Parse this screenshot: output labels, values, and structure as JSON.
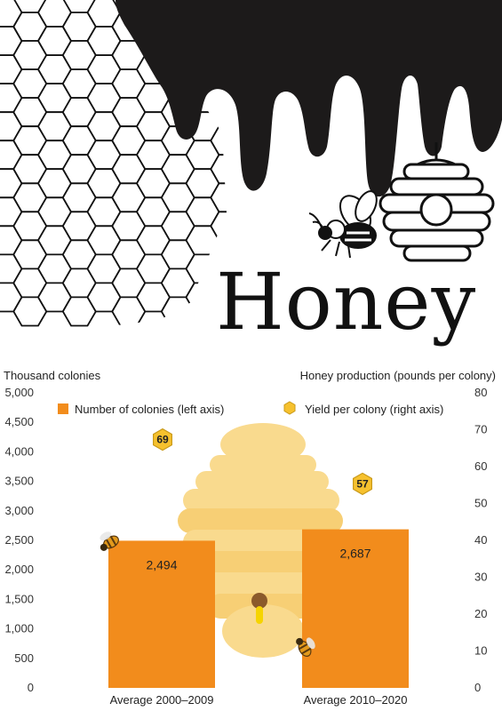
{
  "art": {
    "title": "Honey",
    "colors": {
      "drip": "#1c1a1a",
      "outline": "#111111"
    }
  },
  "chart_data": {
    "type": "bar",
    "categories": [
      "Average 2000–2009",
      "Average 2010–2020"
    ],
    "series": [
      {
        "name": "Number of colonies (left axis)",
        "values": [
          2494,
          2687
        ],
        "labels": [
          "2,494",
          "2,687"
        ],
        "color": "#f28c1c"
      },
      {
        "name": "Yield per colony (right axis)",
        "values": [
          69,
          57
        ],
        "labels": [
          "69",
          "57"
        ],
        "color": "#f6c12e"
      }
    ],
    "ylabel": "Thousand colonies",
    "y2label": "Honey production (pounds per colony)",
    "ylim": [
      0,
      5000
    ],
    "y2lim": [
      0,
      80
    ],
    "yticks": [
      "0",
      "500",
      "1,000",
      "1,500",
      "2,000",
      "2,500",
      "3,000",
      "3,500",
      "4,000",
      "4,500",
      "5,000"
    ],
    "y2ticks": [
      "0",
      "10",
      "20",
      "30",
      "40",
      "50",
      "60",
      "70",
      "80"
    ],
    "legend_position": "top",
    "grid": false
  }
}
